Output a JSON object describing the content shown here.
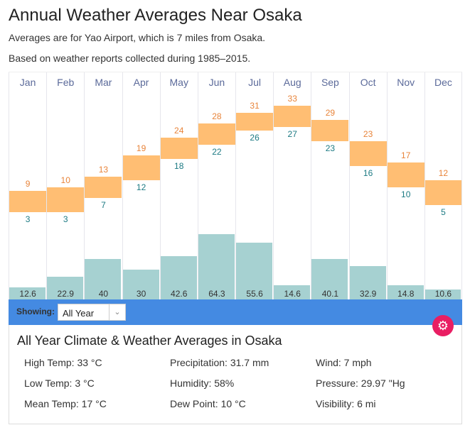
{
  "title": "Annual Weather Averages Near Osaka",
  "subtitle1": "Averages are for Yao Airport, which is 7 miles from Osaka.",
  "subtitle2": "Based on weather reports collected during 1985–2015.",
  "chart_data": {
    "type": "bar",
    "categories": [
      "Jan",
      "Feb",
      "Mar",
      "Apr",
      "May",
      "Jun",
      "Jul",
      "Aug",
      "Sep",
      "Oct",
      "Nov",
      "Dec"
    ],
    "series": [
      {
        "name": "High Temp (°C)",
        "values": [
          9,
          10,
          13,
          19,
          24,
          28,
          31,
          33,
          29,
          23,
          17,
          12
        ]
      },
      {
        "name": "Low Temp (°C)",
        "values": [
          3,
          3,
          7,
          12,
          18,
          22,
          26,
          27,
          23,
          16,
          10,
          5
        ]
      },
      {
        "name": "Precipitation (mm)",
        "values": [
          12.6,
          22.9,
          40,
          30,
          42.6,
          64.3,
          55.6,
          14.6,
          40.1,
          32.9,
          14.8,
          10.6
        ]
      }
    ],
    "colors": {
      "temp_range": "#ffbe73",
      "high": "#e8843a",
      "low": "#1c7a83",
      "precip": "#a6d1d1"
    }
  },
  "controls": {
    "showing_label": "Showing:",
    "selected": "All Year"
  },
  "panel": {
    "title": "All Year Climate & Weather Averages in Osaka",
    "stats": [
      "High Temp: 33 °C",
      "Precipitation: 31.7 mm",
      "Wind: 7 mph",
      "Low Temp: 3 °C",
      "Humidity: 58%",
      "Pressure: 29.97 \"Hg",
      "Mean Temp: 17 °C",
      "Dew Point: 10 °C",
      "Visibility: 6 mi"
    ]
  }
}
